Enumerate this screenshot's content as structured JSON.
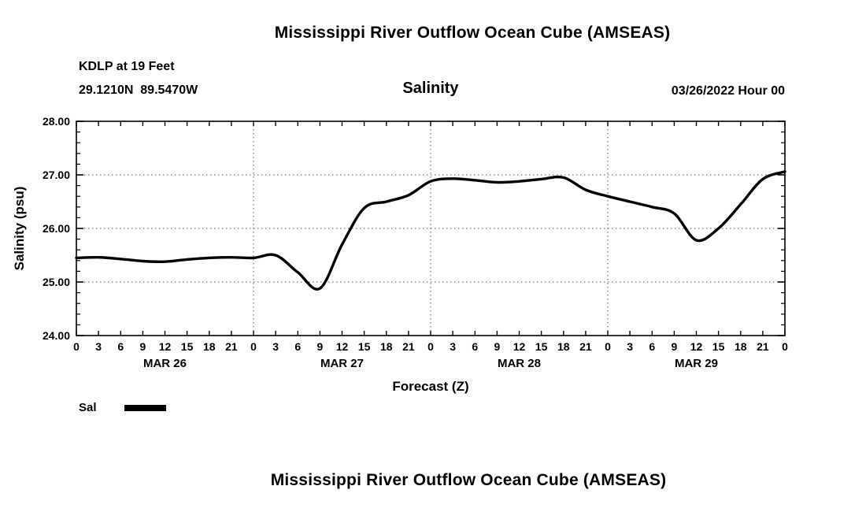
{
  "titles": {
    "main": "Mississippi River Outflow Ocean Cube (AMSEAS)"
  },
  "header": {
    "station": "KDLP at 19 Feet",
    "coords": "29.1210N  89.5470W",
    "variable": "Salinity",
    "datetime": "03/26/2022 Hour 00"
  },
  "legend": {
    "label": "Sal"
  },
  "colors": {
    "line": "#000000",
    "frame": "#000000",
    "grid": "#555555",
    "background": "#ffffff"
  },
  "chart_data": {
    "type": "line",
    "title": "Salinity",
    "xlabel": "Forecast (Z)",
    "ylabel": "Salinity (psu)",
    "xlim": [
      0,
      96
    ],
    "ylim": [
      24,
      28
    ],
    "yticks": [
      24,
      25,
      26,
      27,
      28
    ],
    "ytick_labels": [
      "24.00",
      "25.00",
      "26.00",
      "27.00",
      "28.00"
    ],
    "ytick_minor_step": 0.2,
    "xtick_step": 3,
    "xtick_label_mod": 24,
    "day_boundaries": [
      24,
      48,
      72
    ],
    "days": [
      {
        "label": "MAR 26",
        "center_hour": 12
      },
      {
        "label": "MAR 27",
        "center_hour": 36
      },
      {
        "label": "MAR 28",
        "center_hour": 60
      },
      {
        "label": "MAR 29",
        "center_hour": 84
      }
    ],
    "grid": "dotted horizontal lines at integer psu, dotted vertical lines at day boundaries",
    "legend_position": "below-left",
    "series": [
      {
        "name": "Sal",
        "x": [
          0,
          3,
          6,
          9,
          12,
          15,
          18,
          21,
          24,
          27,
          30,
          33,
          36,
          39,
          42,
          45,
          48,
          51,
          54,
          57,
          60,
          63,
          66,
          69,
          72,
          75,
          78,
          81,
          84,
          87,
          90,
          93,
          96
        ],
        "values": [
          25.45,
          25.46,
          25.43,
          25.39,
          25.38,
          25.42,
          25.45,
          25.46,
          25.45,
          25.5,
          25.18,
          24.88,
          25.7,
          26.38,
          26.5,
          26.62,
          26.88,
          26.93,
          26.9,
          26.86,
          26.88,
          26.92,
          26.95,
          26.72,
          26.6,
          26.5,
          26.4,
          26.28,
          25.78,
          26.0,
          26.45,
          26.92,
          27.06
        ]
      }
    ]
  }
}
